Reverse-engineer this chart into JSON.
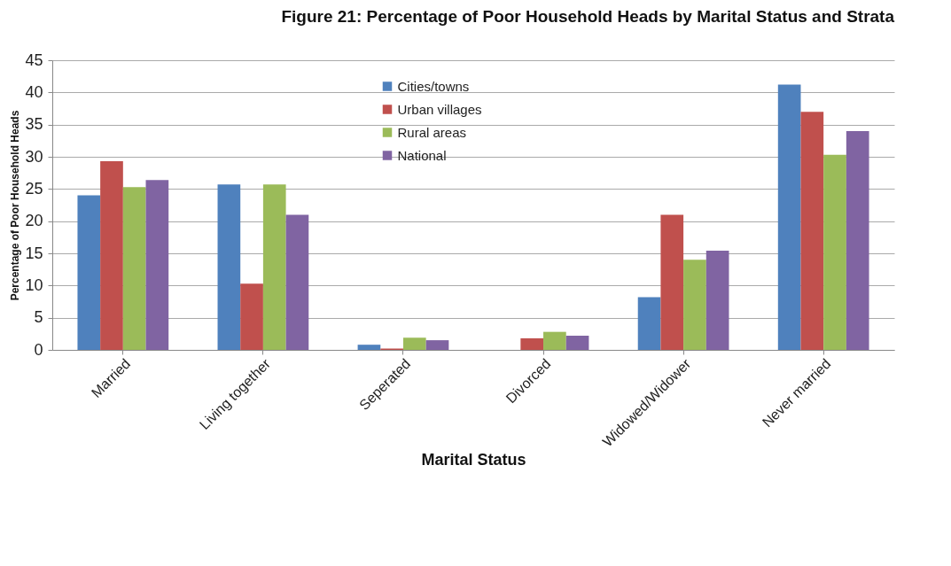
{
  "chart_data": {
    "type": "bar",
    "title": "Figure 21: Percentage of Poor Household Heads by Marital Status and Strata",
    "xlabel": "Marital Status",
    "ylabel": "Percentage of Poor Household Heads",
    "categories": [
      "Married",
      "Living together",
      "Seperated",
      "Divorced",
      "Widowed/Widower",
      "Never married"
    ],
    "series": [
      {
        "name": "Cities/towns",
        "color": "#4f81bd",
        "values": [
          24,
          25.7,
          0.8,
          0,
          8.2,
          41.2
        ]
      },
      {
        "name": "Urban villages",
        "color": "#c0504d",
        "values": [
          29.3,
          10.3,
          0.2,
          1.8,
          21,
          37
        ]
      },
      {
        "name": "Rural areas",
        "color": "#9bbb59",
        "values": [
          25.3,
          25.7,
          1.9,
          2.8,
          14,
          30.3
        ]
      },
      {
        "name": "National",
        "color": "#8064a2",
        "values": [
          26.4,
          21,
          1.5,
          2.2,
          15.4,
          34
        ]
      }
    ],
    "ylim": [
      0,
      45
    ],
    "yticks": [
      0,
      5,
      10,
      15,
      20,
      25,
      30,
      35,
      40,
      45
    ],
    "grid": "y",
    "legend": "top"
  }
}
